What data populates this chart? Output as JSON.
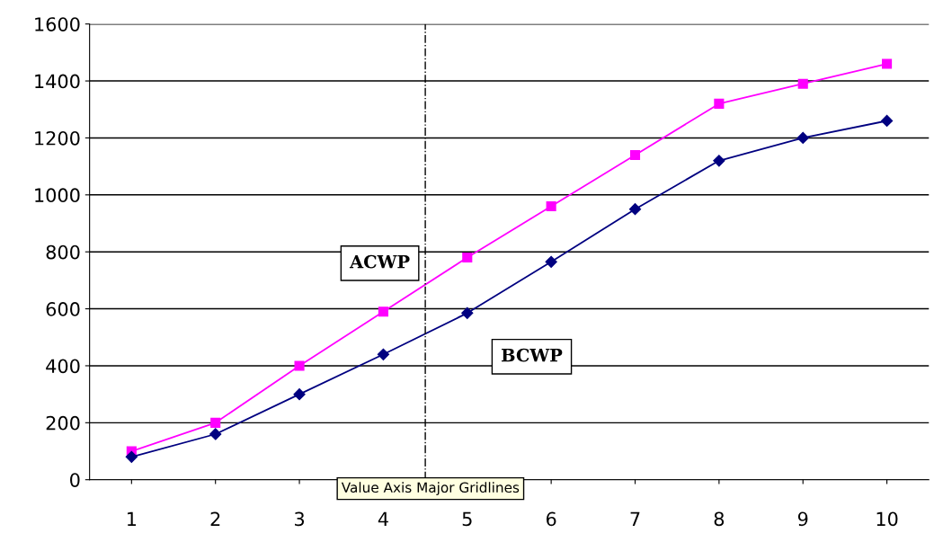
{
  "chart_data": {
    "type": "line",
    "x": [
      1,
      2,
      3,
      4,
      5,
      6,
      7,
      8,
      9,
      10
    ],
    "series": [
      {
        "name": "ACWP",
        "color": "#ff00ff",
        "marker": "square",
        "values": [
          100,
          200,
          400,
          590,
          780,
          960,
          1140,
          1320,
          1390,
          1460
        ]
      },
      {
        "name": "BCWP",
        "color": "#000080",
        "marker": "diamond",
        "values": [
          80,
          160,
          300,
          440,
          585,
          765,
          950,
          1120,
          1200,
          1260
        ]
      }
    ],
    "xlim": [
      0.5,
      10.5
    ],
    "xticks": [
      1,
      2,
      3,
      4,
      5,
      6,
      7,
      8,
      9,
      10
    ],
    "ylim": [
      0,
      1600
    ],
    "yticks": [
      0,
      200,
      400,
      600,
      800,
      1000,
      1200,
      1400,
      1600
    ],
    "grid": "y",
    "line_style": "solid",
    "ref_lines": [
      {
        "axis": "x",
        "value": 4.5,
        "color": "#000000",
        "line_style": "dashdot"
      }
    ],
    "annotations": [
      "Value Axis Major Gridlines"
    ]
  }
}
